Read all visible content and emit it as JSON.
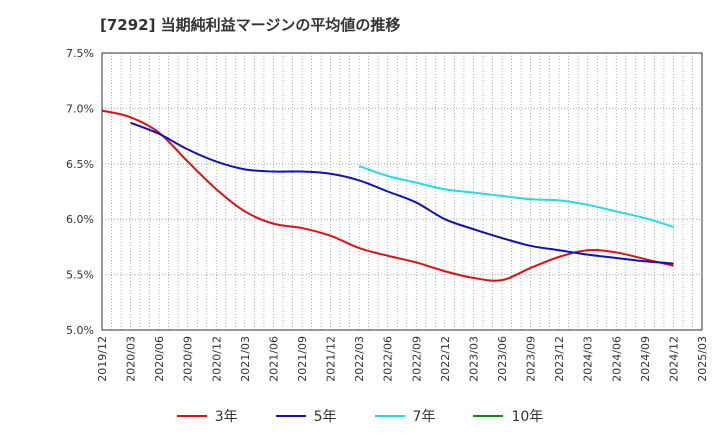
{
  "title": "[7292]  当期純利益マージンの平均値の推移",
  "chart_data": {
    "type": "line",
    "title": "[7292]  当期純利益マージンの平均値の推移",
    "xlabel": "",
    "ylabel": "",
    "x_ticks": [
      "2019/12",
      "2020/03",
      "2020/06",
      "2020/09",
      "2020/12",
      "2021/03",
      "2021/06",
      "2021/09",
      "2021/12",
      "2022/03",
      "2022/06",
      "2022/09",
      "2022/12",
      "2023/03",
      "2023/06",
      "2023/09",
      "2023/12",
      "2024/03",
      "2024/06",
      "2024/09",
      "2024/12",
      "2025/03"
    ],
    "y_ticks": [
      "5.0%",
      "5.5%",
      "6.0%",
      "6.5%",
      "7.0%",
      "7.5%"
    ],
    "ylim": [
      5.0,
      7.5
    ],
    "grid": true,
    "legend_position": "bottom",
    "series": [
      {
        "name": "3年",
        "color": "#dd1111",
        "x": [
          "2019/12",
          "2020/03",
          "2020/06",
          "2020/09",
          "2020/12",
          "2021/03",
          "2021/06",
          "2021/09",
          "2021/12",
          "2022/03",
          "2022/06",
          "2022/09",
          "2022/12",
          "2023/03",
          "2023/06",
          "2023/09",
          "2023/12",
          "2024/03",
          "2024/06",
          "2024/09",
          "2024/12"
        ],
        "values": [
          6.98,
          6.92,
          6.78,
          6.52,
          6.27,
          6.07,
          5.96,
          5.92,
          5.85,
          5.74,
          5.67,
          5.61,
          5.53,
          5.47,
          5.45,
          5.56,
          5.66,
          5.72,
          5.7,
          5.64,
          5.58
        ]
      },
      {
        "name": "5年",
        "color": "#1111bb",
        "x": [
          "2020/03",
          "2020/06",
          "2020/09",
          "2020/12",
          "2021/03",
          "2021/06",
          "2021/09",
          "2021/12",
          "2022/03",
          "2022/06",
          "2022/09",
          "2022/12",
          "2023/03",
          "2023/06",
          "2023/09",
          "2023/12",
          "2024/03",
          "2024/06",
          "2024/09",
          "2024/12"
        ],
        "values": [
          6.87,
          6.77,
          6.63,
          6.52,
          6.45,
          6.43,
          6.43,
          6.41,
          6.35,
          6.25,
          6.15,
          6.0,
          5.91,
          5.83,
          5.76,
          5.72,
          5.68,
          5.65,
          5.62,
          5.6
        ]
      },
      {
        "name": "7年",
        "color": "#22dddd",
        "x": [
          "2022/03",
          "2022/06",
          "2022/09",
          "2022/12",
          "2023/03",
          "2023/06",
          "2023/09",
          "2023/12",
          "2024/03",
          "2024/06",
          "2024/09",
          "2024/12"
        ],
        "values": [
          6.48,
          6.39,
          6.33,
          6.27,
          6.24,
          6.21,
          6.18,
          6.17,
          6.13,
          6.07,
          6.01,
          5.93
        ]
      },
      {
        "name": "10年",
        "color": "#118811",
        "x": [],
        "values": []
      }
    ]
  }
}
